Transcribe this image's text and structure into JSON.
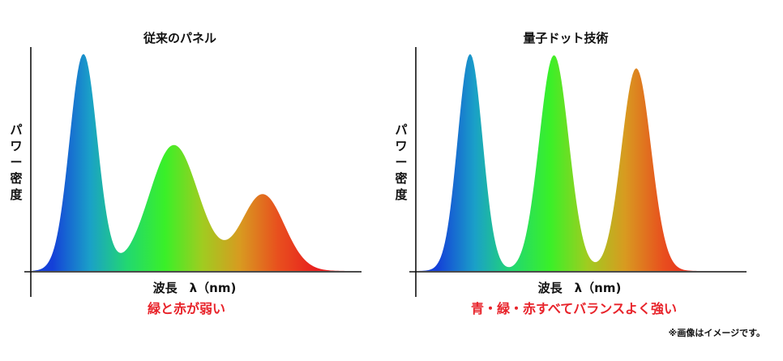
{
  "colors": {
    "axis": "#111111",
    "note": "#e8232a",
    "text": "#111111",
    "spectrum": [
      "#1440d8",
      "#1aa0c8",
      "#22d870",
      "#3af028",
      "#a0cc20",
      "#d89a20",
      "#e8501e",
      "#e8201e"
    ]
  },
  "footnote": "※画像はイメージです。",
  "chart_data": [
    {
      "type": "area",
      "title": "従来のパネル",
      "ylabel": "パワー密度",
      "xlabel": "波長　λ（nm)",
      "note": "緑と赤が弱い",
      "xlim": [
        0,
        1
      ],
      "ylim": [
        0,
        1
      ],
      "grid": false,
      "legend": "none",
      "peaks": [
        {
          "center": 0.155,
          "height": 0.99,
          "width": 0.042
        },
        {
          "center": 0.43,
          "height": 0.575,
          "width": 0.075
        },
        {
          "center": 0.7,
          "height": 0.35,
          "width": 0.065
        }
      ]
    },
    {
      "type": "area",
      "title": "量子ドット技術",
      "ylabel": "パワー密度",
      "xlabel": "波長　λ（nm)",
      "note": "青・緑・赤すべてバランスよく強い",
      "xlim": [
        0,
        1
      ],
      "ylim": [
        0,
        1
      ],
      "grid": false,
      "legend": "none",
      "peaks": [
        {
          "center": 0.16,
          "height": 0.99,
          "width": 0.038
        },
        {
          "center": 0.415,
          "height": 0.985,
          "width": 0.045
        },
        {
          "center": 0.665,
          "height": 0.925,
          "width": 0.045
        }
      ]
    }
  ]
}
